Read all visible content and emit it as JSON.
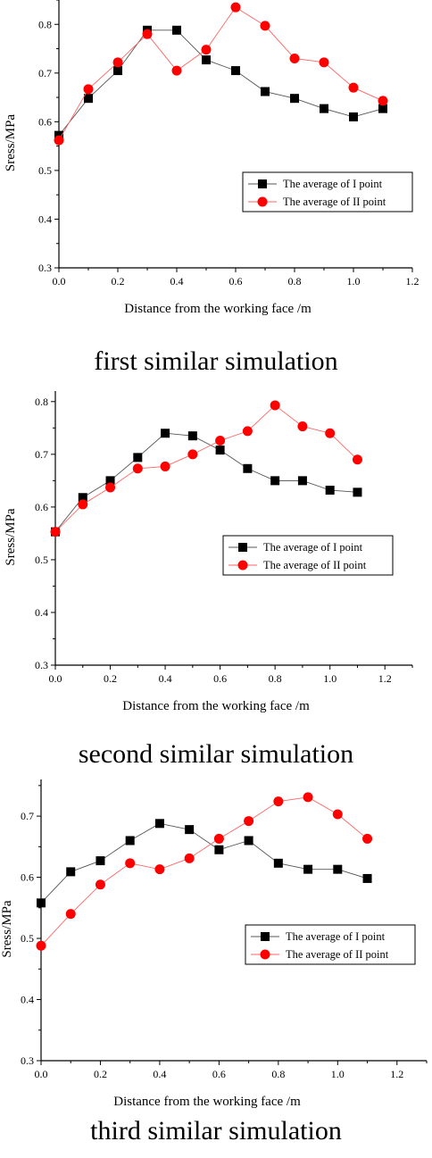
{
  "chart_data": [
    {
      "type": "line",
      "caption": "first similar simulation",
      "xlabel": "Distance from the working face /m",
      "ylabel": "Sress/MPa",
      "xlim": [
        0,
        1.2
      ],
      "ylim": [
        0.3,
        0.85
      ],
      "xticks": [
        "0.0",
        "0.2",
        "0.4",
        "0.6",
        "0.8",
        "1.0",
        "1.2"
      ],
      "yticks": [
        "0.3",
        "0.4",
        "0.5",
        "0.6",
        "0.7",
        "0.8"
      ],
      "x": [
        0.0,
        0.1,
        0.2,
        0.3,
        0.4,
        0.5,
        0.6,
        0.7,
        0.8,
        0.9,
        1.0,
        1.1
      ],
      "legend_position": "right",
      "grid": false,
      "series": [
        {
          "name": "The average of I point",
          "marker": "square",
          "color": "#000000",
          "values": [
            0.572,
            0.648,
            0.705,
            0.788,
            0.788,
            0.727,
            0.705,
            0.662,
            0.648,
            0.627,
            0.61,
            0.627
          ]
        },
        {
          "name": "The average of II point",
          "marker": "circle",
          "color": "#ff0000",
          "values": [
            0.562,
            0.667,
            0.722,
            0.78,
            0.705,
            0.748,
            0.835,
            0.797,
            0.73,
            0.722,
            0.67,
            0.643
          ]
        }
      ]
    },
    {
      "type": "line",
      "caption": "second similar simulation",
      "xlabel": "Distance from the working face /m",
      "ylabel": "Sress/MPa",
      "xlim": [
        0,
        1.3
      ],
      "ylim": [
        0.3,
        0.82
      ],
      "xticks": [
        "0.0",
        "0.2",
        "0.4",
        "0.6",
        "0.8",
        "1.0",
        "1.2"
      ],
      "yticks": [
        "0.3",
        "0.4",
        "0.5",
        "0.6",
        "0.7",
        "0.8"
      ],
      "x": [
        0.0,
        0.1,
        0.2,
        0.3,
        0.4,
        0.5,
        0.6,
        0.7,
        0.8,
        0.9,
        1.0,
        1.1
      ],
      "legend_position": "right",
      "grid": false,
      "series": [
        {
          "name": "The average of I point",
          "marker": "square",
          "color": "#000000",
          "values": [
            0.553,
            0.618,
            0.65,
            0.694,
            0.74,
            0.735,
            0.708,
            0.673,
            0.65,
            0.65,
            0.632,
            0.628
          ]
        },
        {
          "name": "The average of II point",
          "marker": "circle",
          "color": "#ff0000",
          "values": [
            0.553,
            0.605,
            0.637,
            0.673,
            0.677,
            0.7,
            0.726,
            0.744,
            0.793,
            0.753,
            0.74,
            0.69
          ]
        }
      ]
    },
    {
      "type": "line",
      "caption": "third similar simulation",
      "xlabel": "Distance from the working face /m",
      "ylabel": "Sress/MPa",
      "xlim": [
        0,
        1.3
      ],
      "ylim": [
        0.3,
        0.76
      ],
      "xticks": [
        "0.0",
        "0.2",
        "0.4",
        "0.6",
        "0.8",
        "1.0",
        "1.2"
      ],
      "yticks": [
        "0.3",
        "0.4",
        "0.5",
        "0.6",
        "0.7"
      ],
      "x": [
        0.0,
        0.1,
        0.2,
        0.3,
        0.4,
        0.5,
        0.6,
        0.7,
        0.8,
        0.9,
        1.0,
        1.1
      ],
      "legend_position": "right",
      "grid": false,
      "series": [
        {
          "name": "The average of I point",
          "marker": "square",
          "color": "#000000",
          "values": [
            0.558,
            0.609,
            0.627,
            0.66,
            0.688,
            0.678,
            0.645,
            0.66,
            0.623,
            0.613,
            0.613,
            0.598
          ]
        },
        {
          "name": "The average of II point",
          "marker": "circle",
          "color": "#ff0000",
          "values": [
            0.488,
            0.54,
            0.588,
            0.623,
            0.613,
            0.631,
            0.663,
            0.692,
            0.724,
            0.731,
            0.703,
            0.663
          ]
        }
      ]
    }
  ]
}
